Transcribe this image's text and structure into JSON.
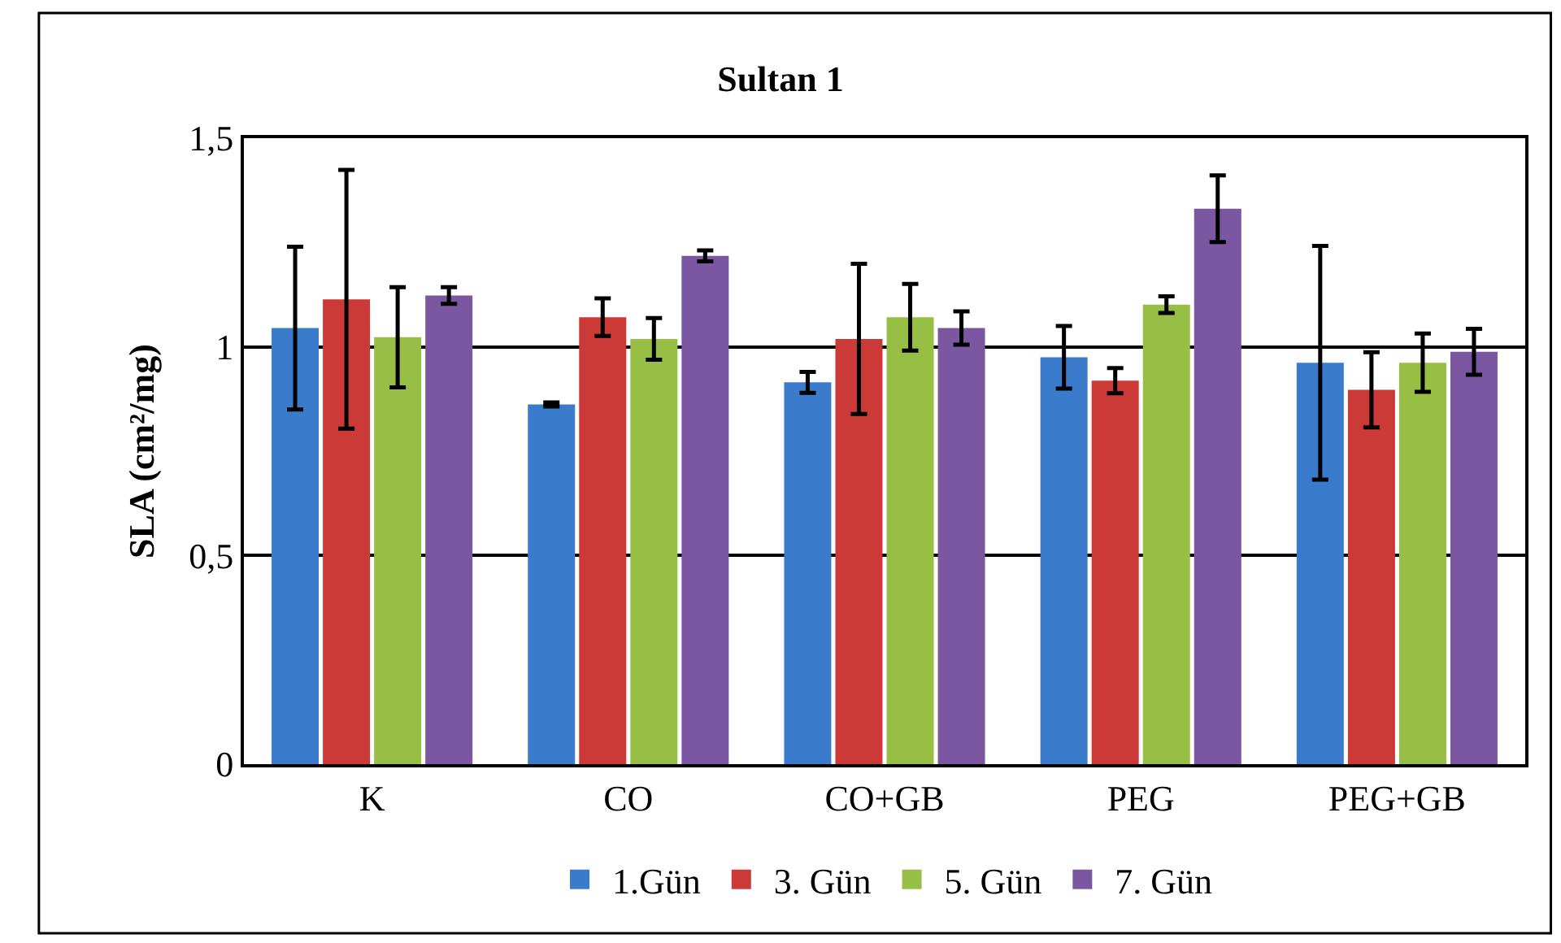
{
  "chart_data": {
    "type": "bar",
    "title": "Sultan 1",
    "ylabel": "SLA (cm²/mg)",
    "categories": [
      "K",
      "CO",
      "CO+GB",
      "PEG",
      "PEG+GB"
    ],
    "series": [
      {
        "name": "1.Gün",
        "color": "#3b7bcc",
        "values": [
          1.045,
          0.862,
          0.915,
          0.975,
          0.962
        ],
        "errors": [
          0.195,
          0.005,
          0.025,
          0.075,
          0.28
        ]
      },
      {
        "name": "3. Gün",
        "color": "#cc3a37",
        "values": [
          1.114,
          1.071,
          1.019,
          0.919,
          0.897
        ],
        "errors": [
          0.31,
          0.045,
          0.18,
          0.03,
          0.09
        ]
      },
      {
        "name": "5. Gün",
        "color": "#98bf45",
        "values": [
          1.023,
          1.019,
          1.071,
          1.101,
          0.962
        ],
        "errors": [
          0.12,
          0.05,
          0.08,
          0.02,
          0.07
        ]
      },
      {
        "name": "7. Gün",
        "color": "#7a57a0",
        "values": [
          1.123,
          1.218,
          1.045,
          1.331,
          0.988
        ],
        "errors": [
          0.02,
          0.013,
          0.04,
          0.08,
          0.055
        ]
      }
    ],
    "ylim": [
      0,
      1.5
    ],
    "yticks": [
      0,
      {
        "value": 0.5,
        "label": "0,5"
      },
      1,
      {
        "value": 1.5,
        "label": "1,5"
      }
    ],
    "grid": "y",
    "legend": "bottom"
  }
}
